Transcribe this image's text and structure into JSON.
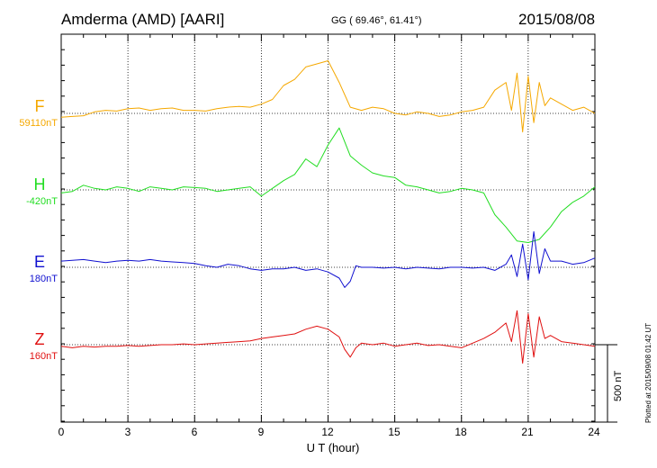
{
  "header": {
    "station": "Amderma (AMD)  [AARI]",
    "coords": "GG ( 69.46°,  61.41°)",
    "date": "2015/08/08"
  },
  "footer": {
    "plotted": "Plotted at 2015/09/08 01:42 UT"
  },
  "chart_data": {
    "type": "line",
    "xlabel": "U T (hour)",
    "xlim": [
      0,
      24
    ],
    "xticks": [
      "0",
      "3",
      "6",
      "9",
      "12",
      "15",
      "18",
      "21",
      "24"
    ],
    "scale_bar": "500 nT",
    "colors": {
      "F": "#f5a800",
      "H": "#22dd22",
      "E": "#1010d0",
      "Z": "#e01010"
    },
    "series": [
      {
        "name": "F",
        "baseline": "59110nT",
        "x": [
          0,
          0.5,
          1,
          1.5,
          2,
          2.5,
          3,
          3.5,
          4,
          4.5,
          5,
          5.5,
          6,
          6.5,
          7,
          7.5,
          8,
          8.5,
          9,
          9.5,
          10,
          10.5,
          11,
          11.5,
          12,
          12.5,
          13,
          13.5,
          14,
          14.5,
          15,
          15.5,
          16,
          16.5,
          17,
          17.5,
          18,
          18.5,
          19,
          19.5,
          20,
          20.25,
          20.5,
          20.75,
          21,
          21.25,
          21.5,
          21.75,
          22,
          22.5,
          23,
          23.5,
          24
        ],
        "y": [
          -25,
          -20,
          -15,
          10,
          20,
          15,
          30,
          35,
          20,
          30,
          35,
          20,
          20,
          15,
          30,
          40,
          45,
          40,
          60,
          90,
          180,
          220,
          300,
          320,
          340,
          200,
          40,
          20,
          40,
          30,
          0,
          -10,
          10,
          0,
          -20,
          -10,
          10,
          20,
          40,
          150,
          200,
          20,
          260,
          -120,
          240,
          -60,
          200,
          50,
          100,
          60,
          20,
          40,
          0
        ]
      },
      {
        "name": "H",
        "baseline": "-420nT",
        "x": [
          0,
          0.5,
          1,
          1.5,
          2,
          2.5,
          3,
          3.5,
          4,
          4.5,
          5,
          5.5,
          6,
          6.5,
          7,
          7.5,
          8,
          8.5,
          9,
          9.5,
          10,
          10.5,
          11,
          11.5,
          12,
          12.5,
          13,
          13.5,
          14,
          14.5,
          15,
          15.5,
          16,
          16.5,
          17,
          17.5,
          18,
          18.5,
          19,
          19.5,
          20,
          20.5,
          21,
          21.5,
          22,
          22.5,
          23,
          23.5,
          24
        ],
        "y": [
          -20,
          -10,
          30,
          10,
          0,
          20,
          10,
          -10,
          20,
          10,
          0,
          20,
          15,
          10,
          -10,
          0,
          10,
          20,
          -40,
          10,
          60,
          100,
          200,
          150,
          290,
          400,
          220,
          160,
          110,
          90,
          80,
          30,
          20,
          0,
          -20,
          -10,
          10,
          0,
          -20,
          -160,
          -240,
          -330,
          -340,
          -320,
          -240,
          -140,
          -80,
          -40,
          20
        ]
      },
      {
        "name": "E",
        "baseline": "180nT",
        "x": [
          0,
          0.5,
          1,
          1.5,
          2,
          2.5,
          3,
          3.5,
          4,
          4.5,
          5,
          5.5,
          6,
          6.5,
          7,
          7.5,
          8,
          8.5,
          9,
          9.5,
          10,
          10.5,
          11,
          11.5,
          12,
          12.5,
          12.75,
          13,
          13.25,
          13.5,
          14,
          14.5,
          15,
          15.5,
          16,
          16.5,
          17,
          17.5,
          18,
          18.5,
          19,
          19.5,
          20,
          20.25,
          20.5,
          20.75,
          21,
          21.25,
          21.5,
          21.75,
          22,
          22.5,
          23,
          23.5,
          24
        ],
        "y": [
          40,
          45,
          50,
          40,
          30,
          40,
          45,
          40,
          50,
          40,
          35,
          30,
          25,
          10,
          0,
          20,
          10,
          -10,
          -20,
          -10,
          -10,
          0,
          -20,
          -10,
          -30,
          -70,
          -130,
          -90,
          10,
          0,
          0,
          -5,
          0,
          -10,
          0,
          -5,
          -10,
          0,
          0,
          -5,
          0,
          -20,
          20,
          80,
          -60,
          150,
          -80,
          230,
          -40,
          120,
          40,
          40,
          20,
          30,
          60
        ]
      },
      {
        "name": "Z",
        "baseline": "160nT",
        "x": [
          0,
          0.5,
          1,
          1.5,
          2,
          2.5,
          3,
          3.5,
          4,
          4.5,
          5,
          5.5,
          6,
          6.5,
          7,
          7.5,
          8,
          8.5,
          9,
          9.5,
          10,
          10.5,
          11,
          11.5,
          12,
          12.5,
          12.75,
          13,
          13.25,
          13.5,
          14,
          14.5,
          15,
          15.5,
          16,
          16.5,
          17,
          17.5,
          18,
          18.5,
          19,
          19.5,
          20,
          20.25,
          20.5,
          20.75,
          21,
          21.25,
          21.5,
          21.75,
          22,
          22.5,
          23,
          23.5,
          24
        ],
        "y": [
          -10,
          -20,
          -10,
          -15,
          -10,
          -10,
          -5,
          -10,
          -5,
          0,
          0,
          5,
          0,
          5,
          10,
          15,
          20,
          25,
          40,
          50,
          60,
          70,
          100,
          120,
          100,
          50,
          -30,
          -80,
          -20,
          10,
          0,
          10,
          -10,
          0,
          10,
          -5,
          0,
          -10,
          -20,
          10,
          40,
          80,
          140,
          20,
          220,
          -120,
          200,
          -80,
          180,
          40,
          60,
          20,
          10,
          0,
          -10
        ]
      }
    ]
  }
}
